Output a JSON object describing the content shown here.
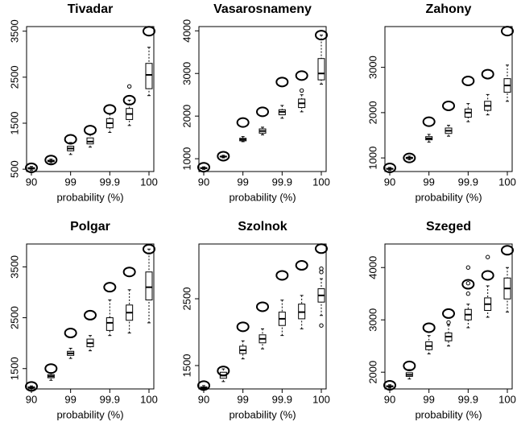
{
  "chart_data": [
    {
      "type": "box",
      "title": "Tivadar",
      "xlabel": "probability (%)",
      "categories": [
        "90",
        null,
        "99",
        null,
        "99.9",
        null,
        "100"
      ],
      "ylim": [
        450,
        3600
      ],
      "yticks": [
        500,
        1500,
        2500,
        3500
      ],
      "points": [
        530,
        700,
        1150,
        1350,
        1800,
        2000,
        3500
      ],
      "boxes": [
        {
          "low": 480,
          "q1": 505,
          "median": 520,
          "q3": 535,
          "high": 560,
          "outliers": []
        },
        {
          "low": 640,
          "q1": 665,
          "median": 680,
          "q3": 695,
          "high": 720,
          "outliers": []
        },
        {
          "low": 820,
          "q1": 900,
          "median": 950,
          "q3": 1000,
          "high": 1080,
          "outliers": []
        },
        {
          "low": 980,
          "q1": 1050,
          "median": 1100,
          "q3": 1180,
          "high": 1250,
          "outliers": []
        },
        {
          "low": 1300,
          "q1": 1400,
          "median": 1500,
          "q3": 1600,
          "high": 1700,
          "outliers": []
        },
        {
          "low": 1450,
          "q1": 1580,
          "median": 1700,
          "q3": 1820,
          "high": 2000,
          "outliers": [
            2300
          ]
        },
        {
          "low": 2100,
          "q1": 2250,
          "median": 2550,
          "q3": 2800,
          "high": 3150,
          "outliers": []
        }
      ]
    },
    {
      "type": "box",
      "title": "Vasarosnameny",
      "xlabel": "probability (%)",
      "categories": [
        "90",
        null,
        "99",
        null,
        "99.9",
        null,
        "100"
      ],
      "ylim": [
        700,
        4100
      ],
      "yticks": [
        1000,
        2000,
        3000,
        4000
      ],
      "points": [
        800,
        1060,
        1850,
        2100,
        2800,
        2950,
        3900
      ],
      "boxes": [
        {
          "low": 750,
          "q1": 770,
          "median": 780,
          "q3": 790,
          "high": 810,
          "outliers": []
        },
        {
          "low": 1020,
          "q1": 1040,
          "median": 1050,
          "q3": 1060,
          "high": 1080,
          "outliers": []
        },
        {
          "low": 1400,
          "q1": 1420,
          "median": 1450,
          "q3": 1480,
          "high": 1520,
          "outliers": []
        },
        {
          "low": 1560,
          "q1": 1600,
          "median": 1650,
          "q3": 1700,
          "high": 1740,
          "outliers": []
        },
        {
          "low": 1950,
          "q1": 2030,
          "median": 2100,
          "q3": 2150,
          "high": 2250,
          "outliers": []
        },
        {
          "low": 2100,
          "q1": 2200,
          "median": 2300,
          "q3": 2400,
          "high": 2500,
          "outliers": [
            2600
          ]
        },
        {
          "low": 2750,
          "q1": 2850,
          "median": 3000,
          "q3": 3350,
          "high": 3900,
          "outliers": []
        }
      ]
    },
    {
      "type": "box",
      "title": "Zahony",
      "xlabel": "probability (%)",
      "categories": [
        "90",
        null,
        "99",
        null,
        "99.9",
        null,
        "100"
      ],
      "ylim": [
        700,
        3900
      ],
      "yticks": [
        1000,
        2000,
        3000
      ],
      "points": [
        780,
        1000,
        1800,
        2150,
        2700,
        2850,
        3800
      ],
      "boxes": [
        {
          "low": 730,
          "q1": 750,
          "median": 760,
          "q3": 770,
          "high": 790,
          "outliers": []
        },
        {
          "low": 960,
          "q1": 985,
          "median": 1000,
          "q3": 1015,
          "high": 1040,
          "outliers": []
        },
        {
          "low": 1350,
          "q1": 1400,
          "median": 1430,
          "q3": 1470,
          "high": 1520,
          "outliers": []
        },
        {
          "low": 1480,
          "q1": 1540,
          "median": 1600,
          "q3": 1660,
          "high": 1720,
          "outliers": []
        },
        {
          "low": 1800,
          "q1": 1900,
          "median": 2000,
          "q3": 2080,
          "high": 2200,
          "outliers": []
        },
        {
          "low": 1950,
          "q1": 2050,
          "median": 2150,
          "q3": 2250,
          "high": 2400,
          "outliers": []
        },
        {
          "low": 2250,
          "q1": 2450,
          "median": 2600,
          "q3": 2750,
          "high": 3050,
          "outliers": []
        }
      ]
    },
    {
      "type": "box",
      "title": "Polgar",
      "xlabel": "probability (%)",
      "categories": [
        "90",
        null,
        "99",
        null,
        "99.9",
        null,
        "100"
      ],
      "ylim": [
        1100,
        3950
      ],
      "yticks": [
        1500,
        2500,
        3500
      ],
      "points": [
        1150,
        1500,
        2200,
        2550,
        3100,
        3400,
        3850
      ],
      "boxes": [
        {
          "low": 1110,
          "q1": 1120,
          "median": 1130,
          "q3": 1140,
          "high": 1160,
          "outliers": []
        },
        {
          "low": 1270,
          "q1": 1320,
          "median": 1350,
          "q3": 1380,
          "high": 1420,
          "outliers": []
        },
        {
          "low": 1700,
          "q1": 1760,
          "median": 1800,
          "q3": 1840,
          "high": 1900,
          "outliers": []
        },
        {
          "low": 1850,
          "q1": 1930,
          "median": 2000,
          "q3": 2080,
          "high": 2150,
          "outliers": []
        },
        {
          "low": 2150,
          "q1": 2250,
          "median": 2400,
          "q3": 2500,
          "high": 2850,
          "outliers": []
        },
        {
          "low": 2200,
          "q1": 2450,
          "median": 2600,
          "q3": 2750,
          "high": 3050,
          "outliers": []
        },
        {
          "low": 2400,
          "q1": 2850,
          "median": 3100,
          "q3": 3400,
          "high": 3850,
          "outliers": []
        }
      ]
    },
    {
      "type": "box",
      "title": "Szolnok",
      "xlabel": "probability (%)",
      "categories": [
        "90",
        null,
        "99",
        null,
        "99.9",
        null,
        "100"
      ],
      "ylim": [
        1150,
        3320
      ],
      "yticks": [
        1500,
        2500
      ],
      "points": [
        1200,
        1420,
        2080,
        2380,
        2850,
        3000,
        3250
      ],
      "boxes": [
        {
          "low": 1150,
          "q1": 1160,
          "median": 1170,
          "q3": 1180,
          "high": 1200,
          "outliers": []
        },
        {
          "low": 1260,
          "q1": 1310,
          "median": 1350,
          "q3": 1400,
          "high": 1450,
          "outliers": []
        },
        {
          "low": 1600,
          "q1": 1680,
          "median": 1730,
          "q3": 1790,
          "high": 1870,
          "outliers": []
        },
        {
          "low": 1750,
          "q1": 1840,
          "median": 1900,
          "q3": 1960,
          "high": 2050,
          "outliers": []
        },
        {
          "low": 1950,
          "q1": 2100,
          "median": 2200,
          "q3": 2300,
          "high": 2480,
          "outliers": []
        },
        {
          "low": 2050,
          "q1": 2200,
          "median": 2300,
          "q3": 2420,
          "high": 2550,
          "outliers": []
        },
        {
          "low": 2250,
          "q1": 2450,
          "median": 2550,
          "q3": 2650,
          "high": 2800,
          "outliers": [
            2100,
            2900,
            2950
          ]
        }
      ]
    },
    {
      "type": "box",
      "title": "Szeged",
      "xlabel": "probability (%)",
      "categories": [
        "90",
        null,
        "99",
        null,
        "99.9",
        null,
        "100"
      ],
      "ylim": [
        1680,
        4450
      ],
      "yticks": [
        2000,
        3000,
        4000
      ],
      "points": [
        1750,
        2120,
        2850,
        3120,
        3680,
        3850,
        4330
      ],
      "boxes": [
        {
          "low": 1700,
          "q1": 1720,
          "median": 1730,
          "q3": 1740,
          "high": 1760,
          "outliers": []
        },
        {
          "low": 1870,
          "q1": 1920,
          "median": 1950,
          "q3": 1990,
          "high": 2050,
          "outliers": []
        },
        {
          "low": 2350,
          "q1": 2430,
          "median": 2500,
          "q3": 2580,
          "high": 2700,
          "outliers": []
        },
        {
          "low": 2500,
          "q1": 2600,
          "median": 2680,
          "q3": 2750,
          "high": 2900,
          "outliers": [
            2950
          ]
        },
        {
          "low": 2850,
          "q1": 3000,
          "median": 3100,
          "q3": 3200,
          "high": 3300,
          "outliers": [
            3500,
            3700,
            4000
          ]
        },
        {
          "low": 3050,
          "q1": 3180,
          "median": 3300,
          "q3": 3420,
          "high": 3650,
          "outliers": [
            4200
          ]
        },
        {
          "low": 3150,
          "q1": 3400,
          "median": 3600,
          "q3": 3800,
          "high": 4000,
          "outliers": []
        }
      ]
    }
  ]
}
